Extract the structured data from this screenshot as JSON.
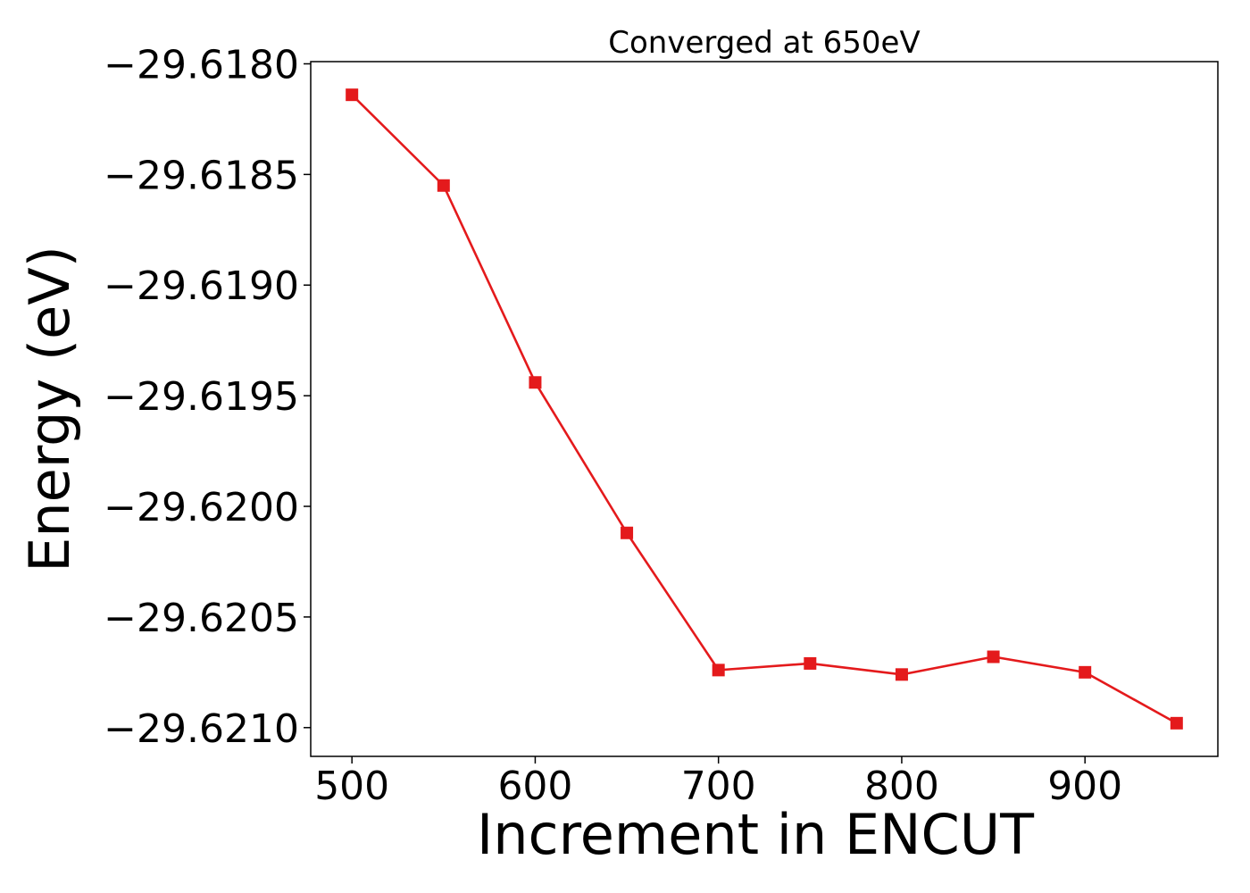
{
  "chart_data": {
    "type": "line",
    "title": "Converged at 650eV",
    "xlabel": "Increment in ENCUT",
    "ylabel": "Energy (eV)",
    "xlim": [
      477.5,
      972.5
    ],
    "ylim": [
      -29.62113,
      -29.61799
    ],
    "x_ticks": [
      500,
      600,
      700,
      800,
      900
    ],
    "x_tick_labels": [
      "500",
      "600",
      "700",
      "800",
      "900"
    ],
    "y_ticks": [
      -29.618,
      -29.6185,
      -29.619,
      -29.6195,
      -29.62,
      -29.6205,
      -29.621
    ],
    "y_tick_labels": [
      "−29.6180",
      "−29.6185",
      "−29.6190",
      "−29.6195",
      "−29.6200",
      "−29.6205",
      "−29.6210"
    ],
    "grid": false,
    "series": [
      {
        "color": "#e41a1c",
        "marker": "square",
        "x": [
          500,
          550,
          600,
          650,
          700,
          750,
          800,
          850,
          900,
          950
        ],
        "y": [
          -29.61814,
          -29.61855,
          -29.61944,
          -29.62012,
          -29.62074,
          -29.62071,
          -29.62076,
          -29.62068,
          -29.62075,
          -29.62098
        ]
      }
    ]
  }
}
